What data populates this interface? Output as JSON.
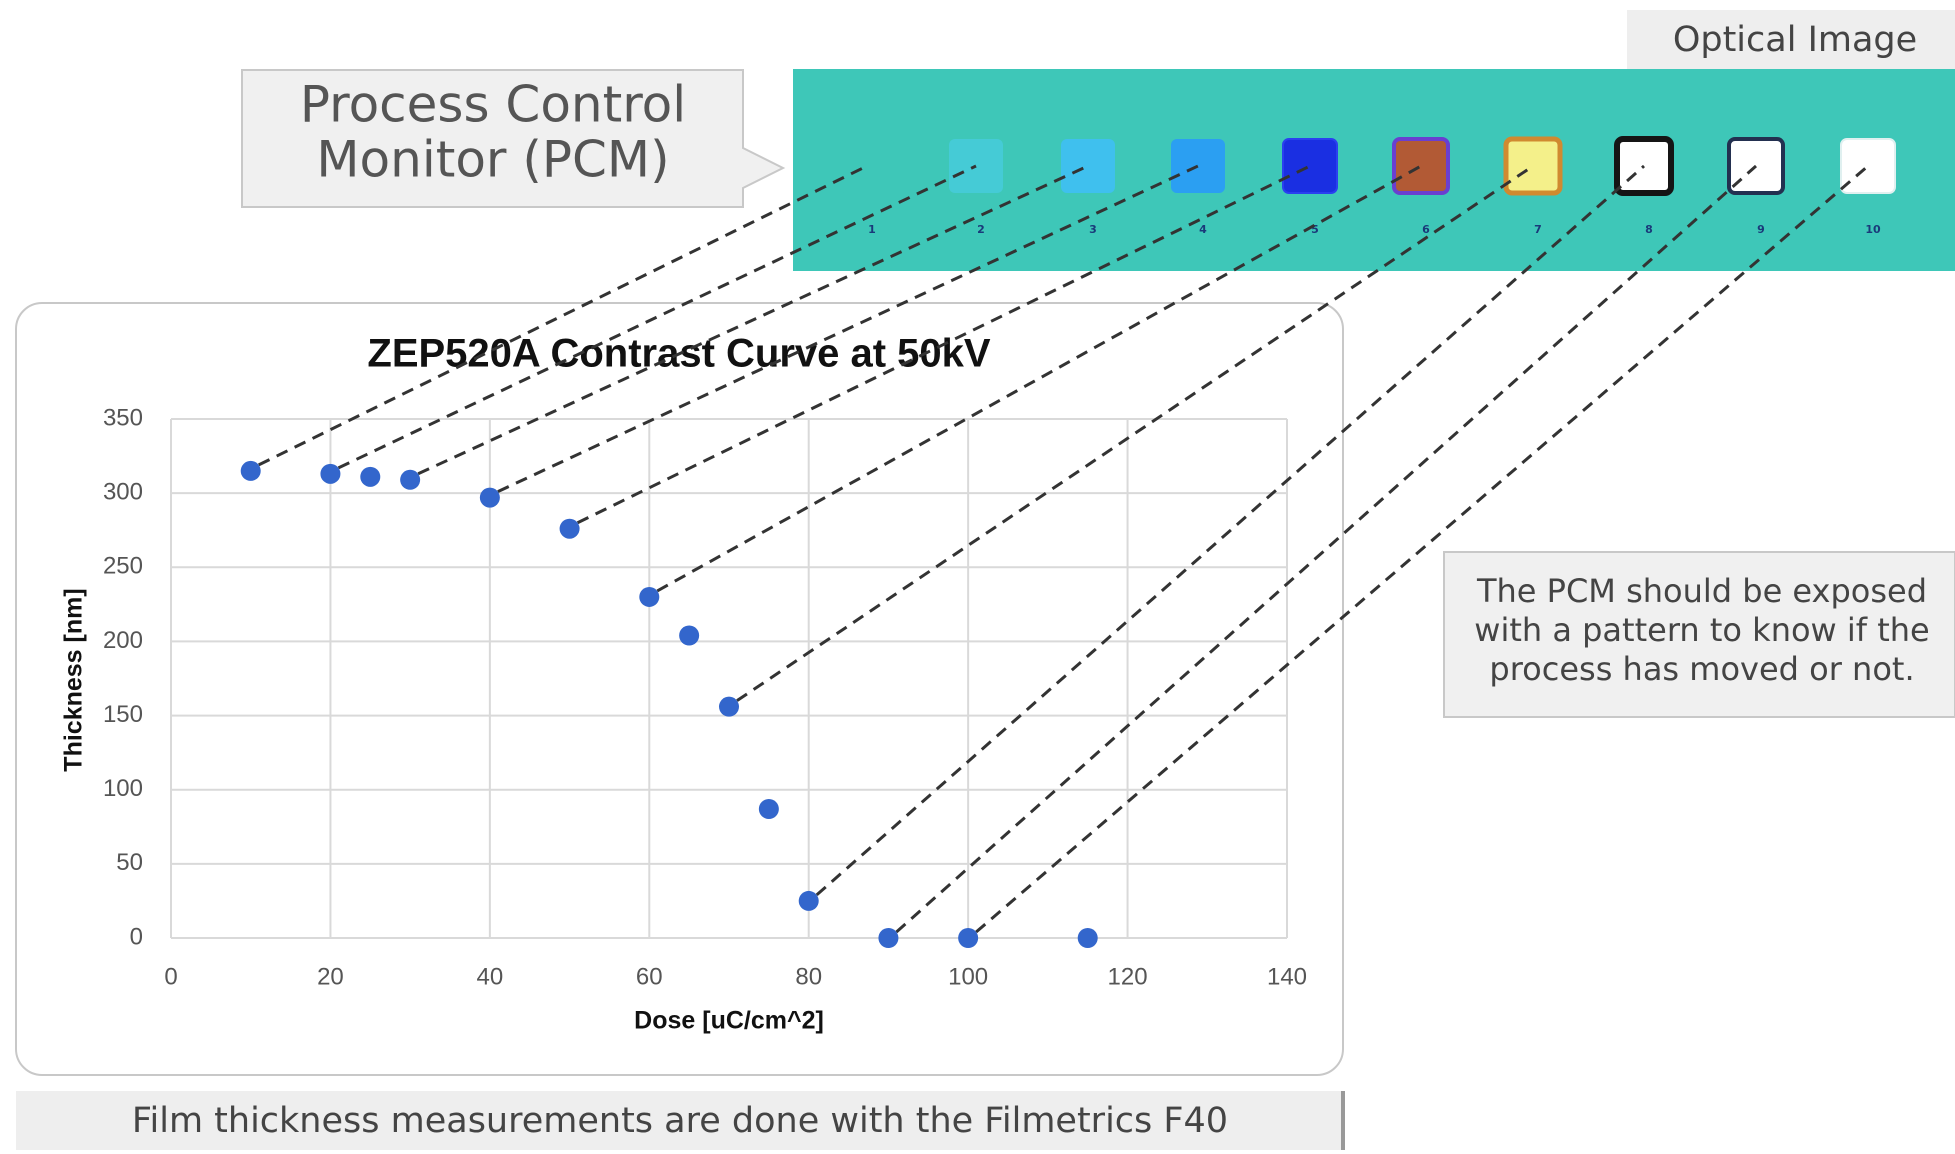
{
  "chart_data": {
    "type": "scatter",
    "title": "ZEP520A Contrast Curve at 50kV",
    "x_label": "Dose [uC/cm^2]",
    "y_label": "Thickness [nm]",
    "x": [
      10,
      20,
      25,
      30,
      40,
      50,
      60,
      65,
      70,
      75,
      80,
      90,
      100,
      115
    ],
    "values": [
      315,
      313,
      311,
      309,
      297,
      276,
      230,
      204,
      156,
      87,
      25,
      0,
      0,
      0
    ],
    "color": "#3366cc",
    "xlim": [
      0,
      140
    ],
    "xticks": [
      0,
      20,
      40,
      60,
      80,
      100,
      120,
      140
    ],
    "ylim": [
      0,
      350
    ],
    "yticks": [
      0,
      50,
      100,
      150,
      200,
      250,
      300,
      350
    ],
    "grid": true
  },
  "slide": {
    "pcm_label": [
      "Process Control",
      "Monitor (PCM)"
    ],
    "optical_label": "Optical Image",
    "pcm_sites": [
      "1",
      "2",
      "3",
      "4",
      "5",
      "6",
      "7",
      "8",
      "9",
      "10"
    ],
    "note": [
      "The PCM should be exposed",
      "with a pattern to know if the",
      "process has moved or not."
    ],
    "footer": "Film thickness measurements are done with the Filmetrics F40"
  }
}
